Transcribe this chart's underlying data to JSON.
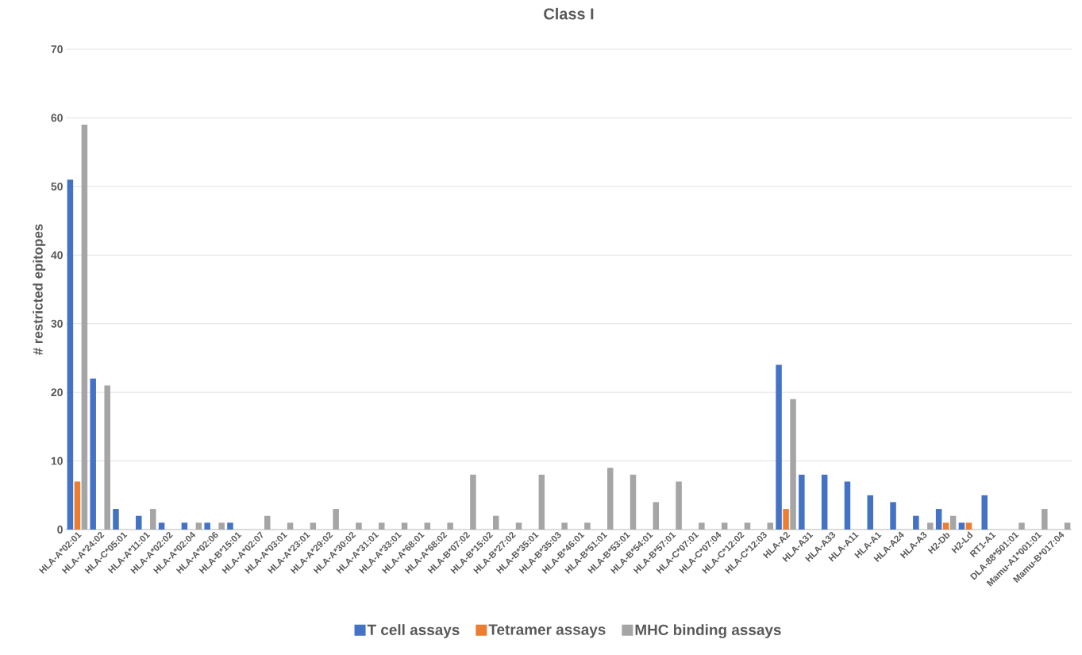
{
  "chart_data": {
    "type": "bar",
    "title": "Class I",
    "ylabel": "# restricted epitopes",
    "categories": [
      "HLA-A*02:01",
      "HLA-A*24:02",
      "HLA-C*05:01",
      "HLA-A*11:01",
      "HLA-A*02:02",
      "HLA-A*02:04",
      "HLA-A*02:06",
      "HLA-B*15:01",
      "HLA-A*02:07",
      "HLA-A*03:01",
      "HLA-A*23:01",
      "HLA-A*29:02",
      "HLA-A*30:02",
      "HLA-A*31:01",
      "HLA-A*33:01",
      "HLA-A*68:01",
      "HLA-A*68:02",
      "HLA-B*07:02",
      "HLA-B*15:02",
      "HLA-B*27:02",
      "HLA-B*35:01",
      "HLA-B*35:03",
      "HLA-B*46:01",
      "HLA-B*51:01",
      "HLA-B*53:01",
      "HLA-B*54:01",
      "HLA-B*57:01",
      "HLA-C*07:01",
      "HLA-C*07:04",
      "HLA-C*12:02",
      "HLA-C*12:03",
      "HLA-A2",
      "HLA-A31",
      "HLA-A33",
      "HLA-A11",
      "HLA-A1",
      "HLA-A24",
      "HLA-A3",
      "H2-Db",
      "H2-Ld",
      "RT1-A1",
      "DLA-88*501:01",
      "Mamu-A1*001:01",
      "Mamu-B*017:04"
    ],
    "series": [
      {
        "name": "T cell assays",
        "color": "#4472c4",
        "values": [
          51,
          22,
          3,
          2,
          1,
          1,
          1,
          1,
          null,
          null,
          null,
          null,
          null,
          null,
          null,
          null,
          null,
          null,
          null,
          null,
          null,
          null,
          null,
          null,
          null,
          null,
          null,
          null,
          null,
          null,
          null,
          24,
          8,
          8,
          7,
          5,
          4,
          2,
          3,
          1,
          5,
          null,
          null,
          null
        ]
      },
      {
        "name": "Tetramer assays",
        "color": "#ed7d31",
        "values": [
          7,
          null,
          null,
          null,
          null,
          null,
          null,
          null,
          null,
          null,
          null,
          null,
          null,
          null,
          null,
          null,
          null,
          null,
          null,
          null,
          null,
          null,
          null,
          null,
          null,
          null,
          null,
          null,
          null,
          null,
          null,
          3,
          null,
          null,
          null,
          null,
          null,
          null,
          1,
          1,
          null,
          null,
          null,
          null
        ]
      },
      {
        "name": "MHC binding assays",
        "color": "#a5a5a5",
        "values": [
          59,
          21,
          null,
          3,
          null,
          1,
          1,
          null,
          2,
          1,
          1,
          3,
          1,
          1,
          1,
          1,
          1,
          8,
          2,
          1,
          8,
          1,
          1,
          9,
          8,
          4,
          7,
          1,
          1,
          1,
          1,
          19,
          null,
          null,
          null,
          null,
          null,
          1,
          2,
          null,
          null,
          1,
          3,
          1
        ]
      }
    ],
    "ylim": [
      0,
      70
    ],
    "yticks": [
      0,
      10,
      20,
      30,
      40,
      50,
      60,
      70
    ],
    "grid": "y",
    "legend": "bottom"
  }
}
